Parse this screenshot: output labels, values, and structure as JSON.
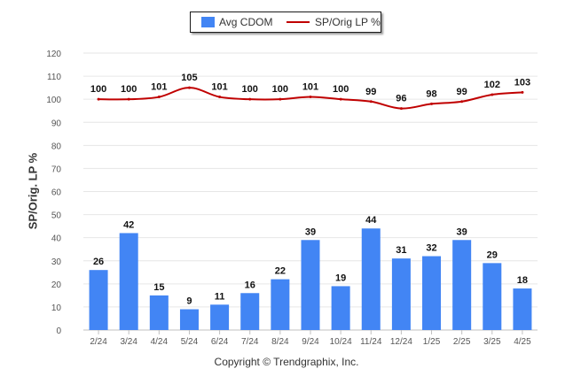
{
  "chart_data": {
    "type": "bar",
    "categories": [
      "2/24",
      "3/24",
      "4/24",
      "5/24",
      "6/24",
      "7/24",
      "8/24",
      "9/24",
      "10/24",
      "11/24",
      "12/24",
      "1/25",
      "2/25",
      "3/25",
      "4/25"
    ],
    "series": [
      {
        "name": "Avg CDOM",
        "type": "bar",
        "color": "#4285f4",
        "values": [
          26,
          42,
          15,
          9,
          11,
          16,
          22,
          39,
          19,
          44,
          31,
          32,
          39,
          29,
          18
        ]
      },
      {
        "name": "SP/Orig LP %",
        "type": "line",
        "color": "#c00000",
        "values": [
          100,
          100,
          101,
          105,
          101,
          100,
          100,
          101,
          100,
          99,
          96,
          98,
          99,
          102,
          103
        ]
      }
    ],
    "ylabel": "SP/Orig. LP %",
    "xlabel": "",
    "ylim": [
      0,
      120
    ],
    "yticks": [
      0,
      10,
      20,
      30,
      40,
      50,
      60,
      70,
      80,
      90,
      100,
      110,
      120
    ],
    "grid": true,
    "legend_position": "top-center",
    "data_labels": true
  },
  "legend": {
    "bar_label": "Avg CDOM",
    "line_label": "SP/Orig LP %"
  },
  "footer": {
    "copyright": "Copyright © Trendgraphix, Inc."
  }
}
